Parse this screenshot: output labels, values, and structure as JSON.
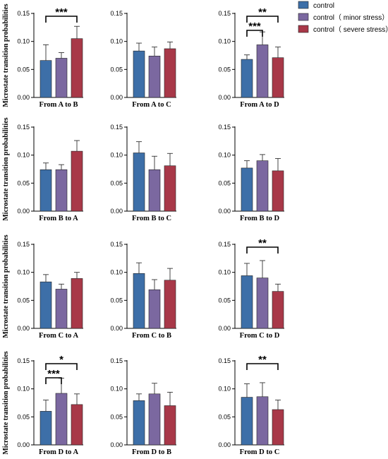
{
  "series_names": [
    "control",
    "control（ minor stress）",
    "control（ severe stress）"
  ],
  "colors": [
    "#3d6fa8",
    "#7b68a0",
    "#a83848"
  ],
  "ylabel": "Microstate transition probabilities",
  "ytick_labels": [
    "0.00",
    "0.05",
    "0.10",
    "0.15"
  ],
  "chart_data": [
    {
      "type": "bar",
      "xlabel": "From A to B",
      "ylim": [
        0,
        0.15
      ],
      "values": [
        0.066,
        0.07,
        0.105
      ],
      "errors": [
        0.028,
        0.01,
        0.022
      ],
      "annotations": [
        {
          "pair": [
            0,
            2
          ],
          "label": "***"
        }
      ]
    },
    {
      "type": "bar",
      "xlabel": "From A to C",
      "ylim": [
        0,
        0.15
      ],
      "values": [
        0.083,
        0.074,
        0.087
      ],
      "errors": [
        0.014,
        0.016,
        0.012
      ],
      "annotations": []
    },
    {
      "type": "bar",
      "xlabel": "From A to D",
      "ylim": [
        0,
        0.15
      ],
      "values": [
        0.068,
        0.094,
        0.071
      ],
      "errors": [
        0.008,
        0.023,
        0.019
      ],
      "annotations": [
        {
          "pair": [
            0,
            1
          ],
          "label": "***"
        },
        {
          "pair": [
            0,
            2
          ],
          "label": "**"
        }
      ]
    },
    {
      "type": "bar",
      "xlabel": "From B to A",
      "ylim": [
        0,
        0.15
      ],
      "values": [
        0.074,
        0.074,
        0.107
      ],
      "errors": [
        0.012,
        0.009,
        0.019
      ],
      "annotations": []
    },
    {
      "type": "bar",
      "xlabel": "From B to C",
      "ylim": [
        0,
        0.15
      ],
      "values": [
        0.104,
        0.074,
        0.081
      ],
      "errors": [
        0.02,
        0.024,
        0.022
      ],
      "annotations": []
    },
    {
      "type": "bar",
      "xlabel": "From B to D",
      "ylim": [
        0,
        0.15
      ],
      "values": [
        0.077,
        0.09,
        0.072
      ],
      "errors": [
        0.013,
        0.011,
        0.022
      ],
      "annotations": []
    },
    {
      "type": "bar",
      "xlabel": "From C to A",
      "ylim": [
        0,
        0.15
      ],
      "values": [
        0.083,
        0.07,
        0.089
      ],
      "errors": [
        0.013,
        0.009,
        0.011
      ],
      "annotations": []
    },
    {
      "type": "bar",
      "xlabel": "From C to B",
      "ylim": [
        0,
        0.15
      ],
      "values": [
        0.098,
        0.069,
        0.086
      ],
      "errors": [
        0.019,
        0.018,
        0.021
      ],
      "annotations": []
    },
    {
      "type": "bar",
      "xlabel": "From C to D",
      "ylim": [
        0,
        0.15
      ],
      "values": [
        0.094,
        0.09,
        0.066
      ],
      "errors": [
        0.022,
        0.031,
        0.013
      ],
      "annotations": [
        {
          "pair": [
            0,
            2
          ],
          "label": "**"
        }
      ]
    },
    {
      "type": "bar",
      "xlabel": "From D to A",
      "ylim": [
        0,
        0.15
      ],
      "values": [
        0.06,
        0.092,
        0.072
      ],
      "errors": [
        0.02,
        0.027,
        0.019
      ],
      "annotations": [
        {
          "pair": [
            0,
            1
          ],
          "label": "***"
        },
        {
          "pair": [
            0,
            2
          ],
          "label": "*"
        }
      ]
    },
    {
      "type": "bar",
      "xlabel": "From D to B",
      "ylim": [
        0,
        0.15
      ],
      "values": [
        0.079,
        0.091,
        0.07
      ],
      "errors": [
        0.012,
        0.019,
        0.024
      ],
      "annotations": []
    },
    {
      "type": "bar",
      "xlabel": "From D to C",
      "ylim": [
        0,
        0.15
      ],
      "values": [
        0.085,
        0.086,
        0.063
      ],
      "errors": [
        0.024,
        0.025,
        0.017
      ],
      "annotations": [
        {
          "pair": [
            0,
            2
          ],
          "label": "**"
        }
      ]
    }
  ]
}
